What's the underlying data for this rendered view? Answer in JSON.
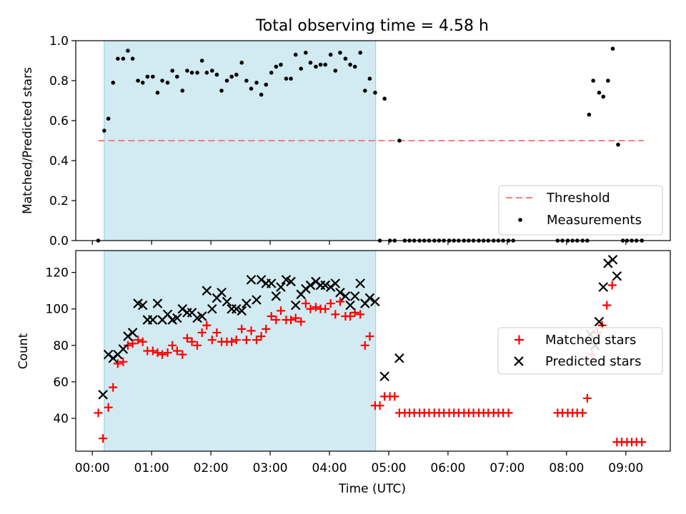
{
  "figure": {
    "title": "Total observing time = 4.58 h"
  },
  "chart_data": [
    {
      "type": "scatter",
      "ylabel": "Matched/Predicted stars",
      "xlabel": "",
      "xlim": [
        -0.28,
        9.75
      ],
      "ylim": [
        0,
        1.0
      ],
      "yticks": [
        "0.0",
        "0.2",
        "0.4",
        "0.6",
        "0.8",
        "1.0"
      ],
      "shaded_interval": [
        0.2,
        4.78
      ],
      "shade_color": "#add8e6",
      "threshold": {
        "name": "Threshold",
        "y": 0.5,
        "x_range": [
          0.1,
          9.3
        ],
        "color": "#f08080"
      },
      "legend": {
        "position": "lower-right",
        "entries": [
          "Threshold",
          "Measurements"
        ]
      },
      "series": [
        {
          "name": "Measurements",
          "color": "#000000",
          "x": [
            0.1,
            0.2,
            0.27,
            0.35,
            0.43,
            0.52,
            0.6,
            0.68,
            0.77,
            0.85,
            0.93,
            1.02,
            1.1,
            1.18,
            1.27,
            1.35,
            1.43,
            1.52,
            1.6,
            1.68,
            1.77,
            1.85,
            1.93,
            2.02,
            2.1,
            2.18,
            2.27,
            2.35,
            2.43,
            2.52,
            2.6,
            2.68,
            2.77,
            2.85,
            2.93,
            3.02,
            3.1,
            3.18,
            3.27,
            3.35,
            3.43,
            3.52,
            3.6,
            3.68,
            3.77,
            3.85,
            3.93,
            4.02,
            4.1,
            4.18,
            4.27,
            4.35,
            4.43,
            4.52,
            4.6,
            4.68,
            4.77,
            4.85,
            4.93,
            5.02,
            5.1,
            5.18,
            5.27,
            5.35,
            5.43,
            5.52,
            5.6,
            5.68,
            5.77,
            5.85,
            5.93,
            6.02,
            6.1,
            6.18,
            6.27,
            6.35,
            6.43,
            6.52,
            6.6,
            6.68,
            6.77,
            6.85,
            6.93,
            7.02,
            7.1,
            7.85,
            7.93,
            8.02,
            8.1,
            8.18,
            8.27,
            8.35,
            8.38,
            8.45,
            8.55,
            8.62,
            8.7,
            8.78,
            8.87,
            8.95,
            9.02,
            9.1,
            9.18,
            9.27
          ],
          "y": [
            0.0,
            0.55,
            0.61,
            0.79,
            0.91,
            0.91,
            0.95,
            0.91,
            0.8,
            0.79,
            0.82,
            0.82,
            0.74,
            0.8,
            0.79,
            0.85,
            0.82,
            0.75,
            0.85,
            0.84,
            0.84,
            0.9,
            0.84,
            0.85,
            0.83,
            0.75,
            0.8,
            0.82,
            0.83,
            0.89,
            0.8,
            0.76,
            0.79,
            0.73,
            0.78,
            0.84,
            0.87,
            0.88,
            0.81,
            0.81,
            0.93,
            0.86,
            0.94,
            0.89,
            0.87,
            0.88,
            0.88,
            0.93,
            0.85,
            0.94,
            0.91,
            0.88,
            0.87,
            0.94,
            0.75,
            0.81,
            0.74,
            0.0,
            0.71,
            0.0,
            0.0,
            0.5,
            0.0,
            0.0,
            0.0,
            0.0,
            0.0,
            0.0,
            0.0,
            0.0,
            0.0,
            0.0,
            0.0,
            0.0,
            0.0,
            0.0,
            0.0,
            0.0,
            0.0,
            0.0,
            0.0,
            0.0,
            0.0,
            0.0,
            0.0,
            0.0,
            0.0,
            0.0,
            0.0,
            0.0,
            0.0,
            0.0,
            0.63,
            0.8,
            0.74,
            0.72,
            0.8,
            0.96,
            0.48,
            0.0,
            0.0,
            0.0,
            0.0,
            0.0
          ]
        }
      ]
    },
    {
      "type": "scatter",
      "ylabel": "Count",
      "xlabel": "Time (UTC)",
      "xlim": [
        -0.28,
        9.75
      ],
      "ylim": [
        22,
        132
      ],
      "yticks": [
        "40",
        "60",
        "80",
        "100",
        "120"
      ],
      "xticks": [
        "00:00",
        "01:00",
        "02:00",
        "03:00",
        "04:00",
        "05:00",
        "06:00",
        "07:00",
        "08:00",
        "09:00"
      ],
      "shaded_interval": [
        0.2,
        4.78
      ],
      "shade_color": "#add8e6",
      "legend": {
        "position": "right",
        "entries": [
          "Matched stars",
          "Predicted stars"
        ]
      },
      "series": [
        {
          "name": "Matched stars",
          "marker": "plus",
          "color": "#ff0000",
          "x": [
            0.1,
            0.18,
            0.27,
            0.35,
            0.43,
            0.52,
            0.6,
            0.68,
            0.77,
            0.85,
            0.93,
            1.02,
            1.1,
            1.18,
            1.27,
            1.35,
            1.43,
            1.52,
            1.6,
            1.68,
            1.77,
            1.85,
            1.93,
            2.02,
            2.1,
            2.18,
            2.27,
            2.35,
            2.43,
            2.52,
            2.6,
            2.68,
            2.77,
            2.85,
            2.93,
            3.02,
            3.1,
            3.18,
            3.27,
            3.35,
            3.43,
            3.52,
            3.6,
            3.68,
            3.77,
            3.85,
            3.93,
            4.02,
            4.1,
            4.18,
            4.27,
            4.35,
            4.43,
            4.52,
            4.6,
            4.68,
            4.77,
            4.85,
            4.93,
            5.02,
            5.1,
            5.18,
            5.27,
            5.35,
            5.43,
            5.52,
            5.6,
            5.68,
            5.77,
            5.85,
            5.93,
            6.02,
            6.1,
            6.18,
            6.27,
            6.35,
            6.43,
            6.52,
            6.6,
            6.68,
            6.77,
            6.85,
            6.93,
            7.02,
            7.85,
            7.93,
            8.02,
            8.1,
            8.18,
            8.27,
            8.35,
            8.43,
            8.52,
            8.6,
            8.68,
            8.77,
            8.85,
            8.93,
            9.02,
            9.1,
            9.18,
            9.27
          ],
          "y": [
            43,
            29,
            46,
            57,
            70,
            71,
            80,
            81,
            83,
            82,
            77,
            77,
            76,
            75,
            76,
            80,
            77,
            75,
            84,
            82,
            80,
            87,
            91,
            83,
            87,
            82,
            82,
            82,
            83,
            89,
            83,
            88,
            83,
            85,
            89,
            96,
            94,
            99,
            94,
            94,
            95,
            93,
            103,
            100,
            101,
            100,
            100,
            103,
            97,
            104,
            96,
            96,
            98,
            97,
            80,
            85,
            47,
            47,
            52,
            52,
            52,
            43,
            43,
            43,
            43,
            43,
            43,
            43,
            43,
            43,
            43,
            43,
            43,
            43,
            43,
            43,
            43,
            43,
            43,
            43,
            43,
            43,
            43,
            43,
            43,
            43,
            43,
            43,
            43,
            43,
            51,
            75,
            87,
            91,
            102,
            113,
            27,
            27,
            27,
            27,
            27,
            27
          ]
        },
        {
          "name": "Predicted stars",
          "marker": "x",
          "color": "#000000",
          "x": [
            0.18,
            0.27,
            0.35,
            0.43,
            0.52,
            0.6,
            0.68,
            0.77,
            0.85,
            0.93,
            1.02,
            1.1,
            1.18,
            1.27,
            1.35,
            1.43,
            1.52,
            1.6,
            1.68,
            1.77,
            1.85,
            1.93,
            2.02,
            2.1,
            2.18,
            2.27,
            2.35,
            2.43,
            2.52,
            2.6,
            2.68,
            2.77,
            2.85,
            2.93,
            3.02,
            3.1,
            3.18,
            3.27,
            3.35,
            3.43,
            3.52,
            3.6,
            3.68,
            3.77,
            3.85,
            3.93,
            4.02,
            4.1,
            4.18,
            4.27,
            4.35,
            4.43,
            4.52,
            4.6,
            4.68,
            4.77,
            4.93,
            5.18,
            8.4,
            8.48,
            8.55,
            8.62,
            8.7,
            8.78,
            8.85
          ],
          "y": [
            53,
            75,
            73,
            75,
            78,
            85,
            87,
            103,
            102,
            94,
            94,
            103,
            94,
            97,
            94,
            95,
            100,
            98,
            98,
            95,
            96,
            110,
            100,
            106,
            109,
            104,
            100,
            100,
            99,
            103,
            116,
            105,
            116,
            114,
            114,
            107,
            112,
            116,
            115,
            102,
            108,
            111,
            113,
            115,
            113,
            113,
            112,
            114,
            109,
            107,
            102,
            107,
            114,
            103,
            106,
            104,
            63,
            73,
            86,
            80,
            93,
            112,
            125,
            127,
            118
          ]
        }
      ]
    }
  ]
}
